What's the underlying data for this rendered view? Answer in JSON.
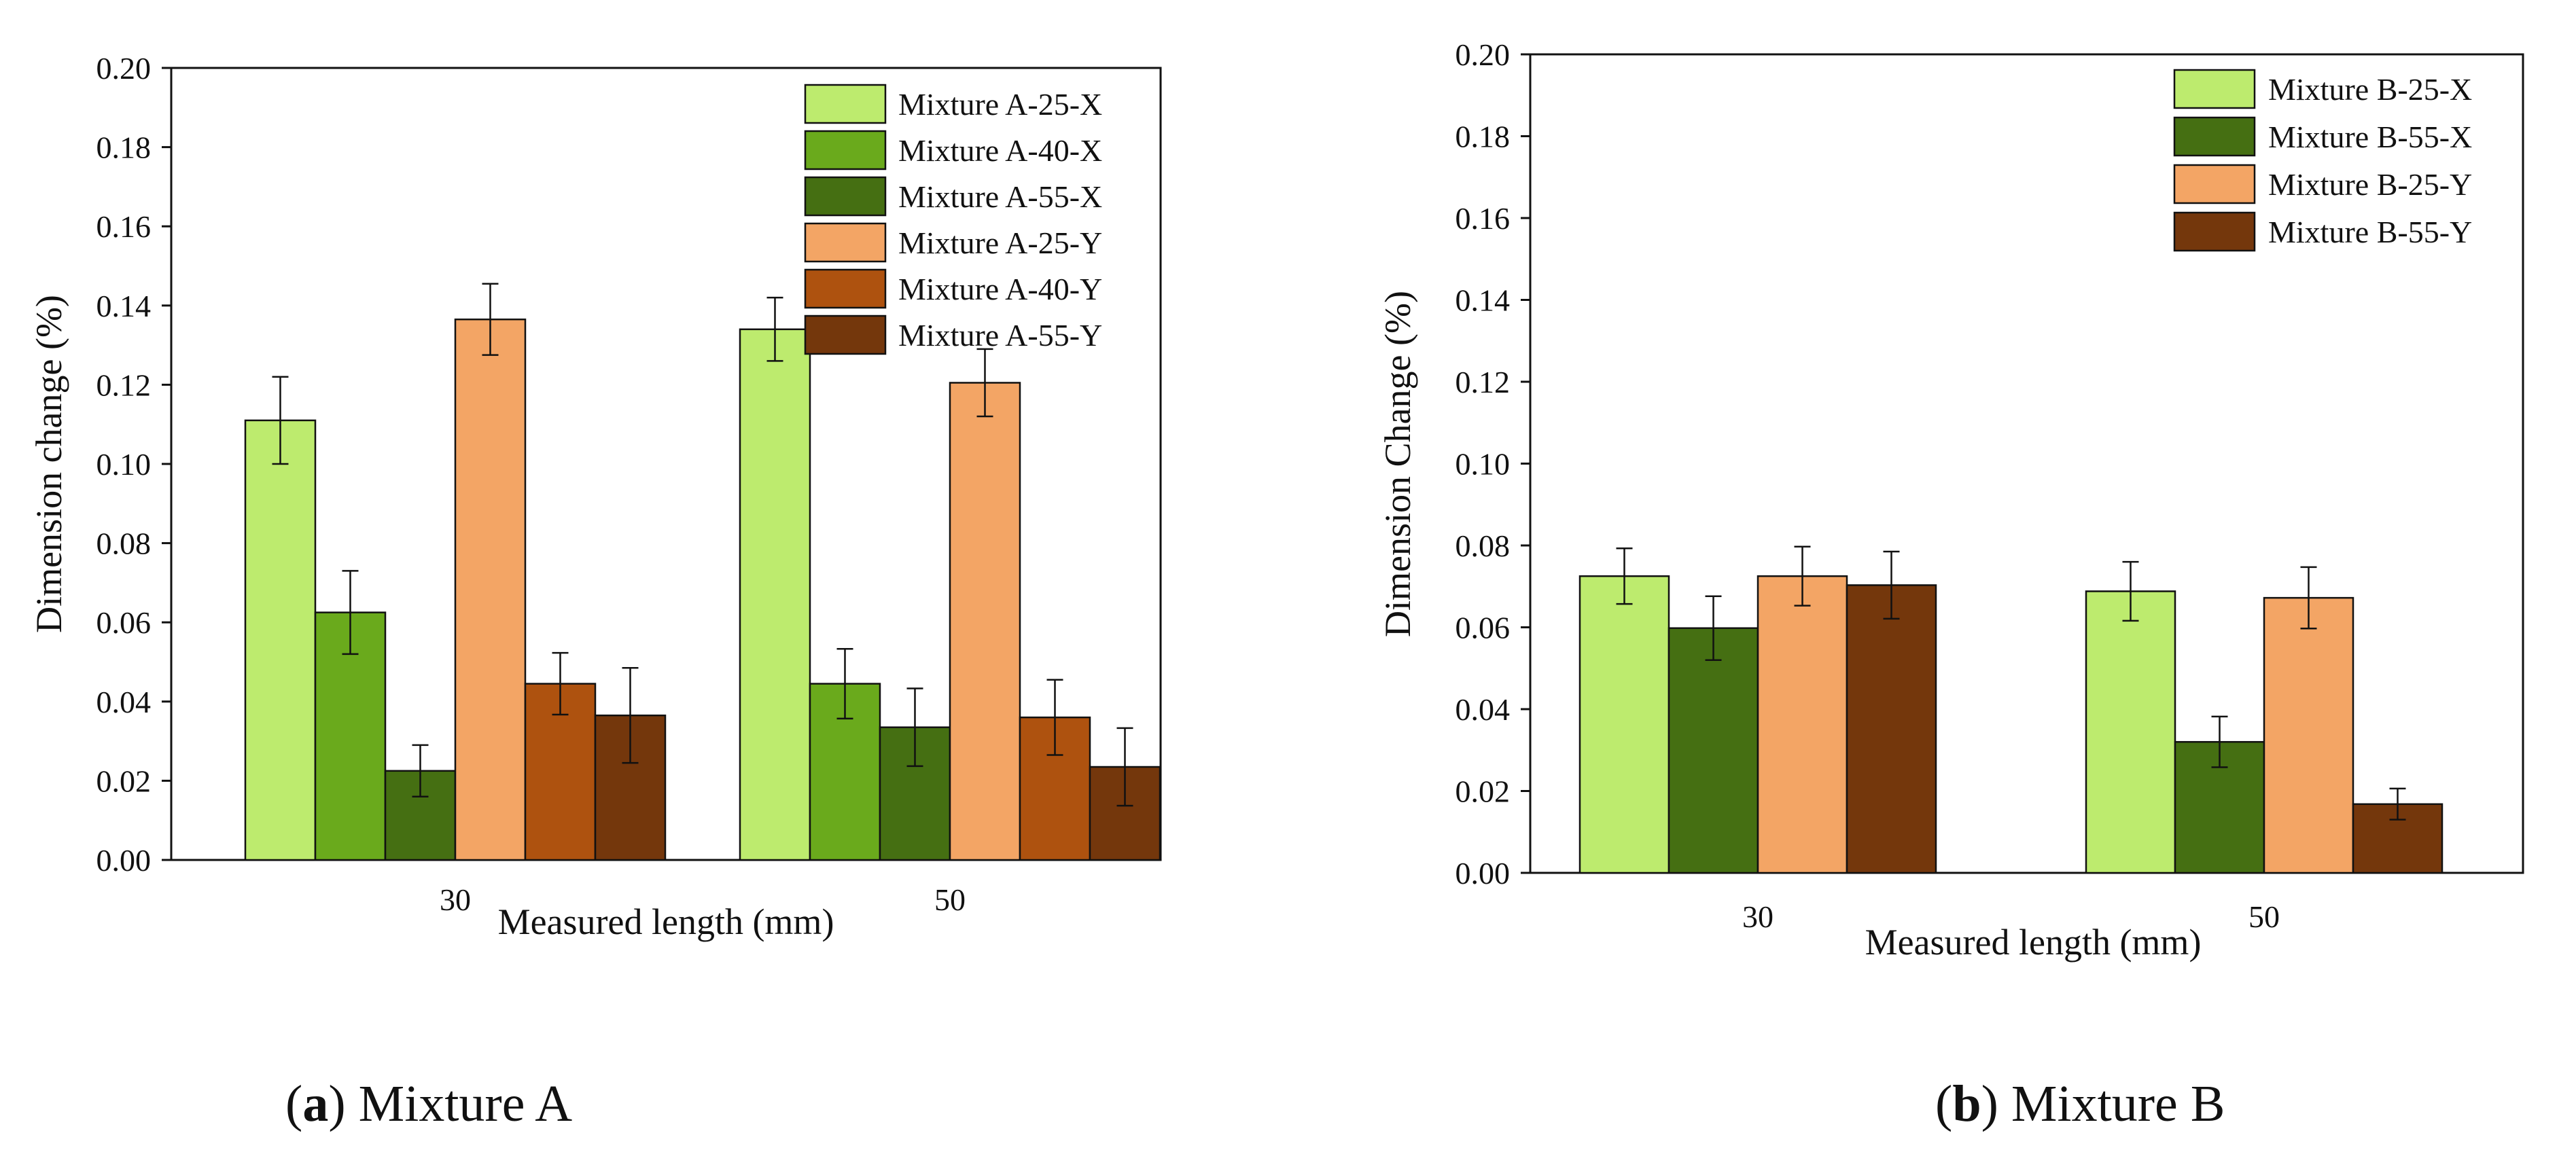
{
  "chart_data": [
    {
      "type": "bar",
      "caption_letter": "a",
      "caption_text": "Mixture A",
      "xlabel": "Measured length (mm)",
      "ylabel": "Dimension change (%)",
      "categories": [
        "30",
        "50"
      ],
      "ylim": [
        0,
        0.2
      ],
      "yticks": [
        "0.00",
        "0.02",
        "0.04",
        "0.06",
        "0.08",
        "0.10",
        "0.12",
        "0.14",
        "0.16",
        "0.18",
        "0.20"
      ],
      "legend_position": "top-right",
      "grid": false,
      "error_bars": true,
      "series": [
        {
          "name": "Mixture A-25-X",
          "color": "#bdeb6e",
          "values": [
            0.111,
            0.134
          ],
          "errors": [
            0.011,
            0.008
          ]
        },
        {
          "name": "Mixture A-40-X",
          "color": "#6aaa1c",
          "values": [
            0.0625,
            0.0445
          ],
          "errors": [
            0.0105,
            0.0088
          ]
        },
        {
          "name": "Mixture A-55-X",
          "color": "#456f12",
          "values": [
            0.0225,
            0.0335
          ],
          "errors": [
            0.0065,
            0.0098
          ]
        },
        {
          "name": "Mixture A-25-Y",
          "color": "#f3a565",
          "values": [
            0.1365,
            0.1205
          ],
          "errors": [
            0.009,
            0.0085
          ]
        },
        {
          "name": "Mixture A-40-Y",
          "color": "#ae520f",
          "values": [
            0.0445,
            0.036
          ],
          "errors": [
            0.0078,
            0.0095
          ]
        },
        {
          "name": "Mixture A-55-Y",
          "color": "#74370c",
          "values": [
            0.0365,
            0.0235
          ],
          "errors": [
            0.012,
            0.0098
          ]
        }
      ]
    },
    {
      "type": "bar",
      "caption_letter": "b",
      "caption_text": "Mixture B",
      "xlabel": "Measured length (mm)",
      "ylabel": "Dimension Change (%)",
      "categories": [
        "30",
        "50"
      ],
      "ylim": [
        0,
        0.2
      ],
      "yticks": [
        "0.00",
        "0.02",
        "0.04",
        "0.06",
        "0.08",
        "0.10",
        "0.12",
        "0.14",
        "0.16",
        "0.18",
        "0.20"
      ],
      "legend_position": "top-right",
      "grid": false,
      "error_bars": true,
      "series": [
        {
          "name": "Mixture B-25-X",
          "color": "#bdeb6e",
          "values": [
            0.0725,
            0.0688
          ],
          "errors": [
            0.0068,
            0.0072
          ]
        },
        {
          "name": "Mixture B-55-X",
          "color": "#456f12",
          "values": [
            0.0598,
            0.032
          ],
          "errors": [
            0.0078,
            0.0062
          ]
        },
        {
          "name": "Mixture B-25-Y",
          "color": "#f3a565",
          "values": [
            0.0725,
            0.0672
          ],
          "errors": [
            0.0072,
            0.0075
          ]
        },
        {
          "name": "Mixture B-55-Y",
          "color": "#74370c",
          "values": [
            0.0703,
            0.0168
          ],
          "errors": [
            0.0082,
            0.0038
          ]
        }
      ]
    }
  ]
}
